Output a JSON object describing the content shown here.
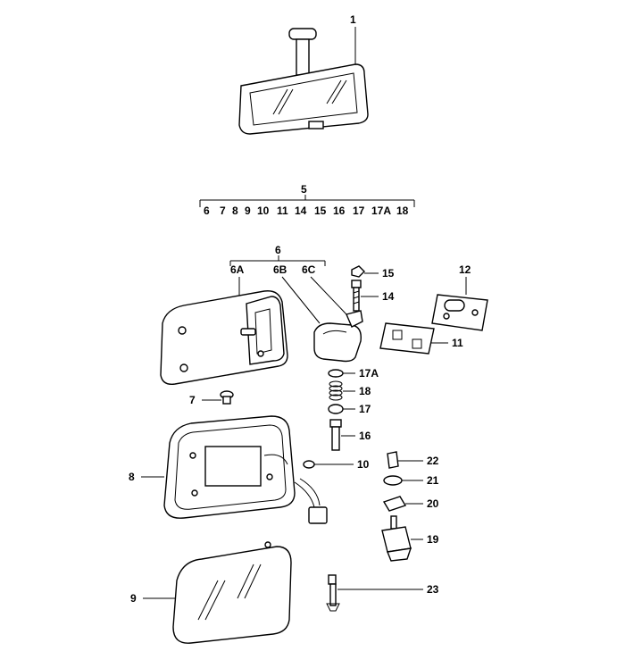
{
  "callouts": {
    "c1": "1",
    "c5": "5",
    "group5": [
      "6",
      "7",
      "8",
      "9",
      "10",
      "11",
      "14",
      "15",
      "16",
      "17",
      "17A",
      "18"
    ],
    "c6": "6",
    "c6a": "6A",
    "c6b": "6B",
    "c6c": "6C",
    "c7": "7",
    "c8": "8",
    "c9": "9",
    "c10": "10",
    "c11": "11",
    "c12": "12",
    "c14": "14",
    "c15": "15",
    "c16": "16",
    "c17": "17",
    "c17a": "17A",
    "c18": "18",
    "c19": "19",
    "c20": "20",
    "c21": "21",
    "c22": "22",
    "c23": "23"
  }
}
